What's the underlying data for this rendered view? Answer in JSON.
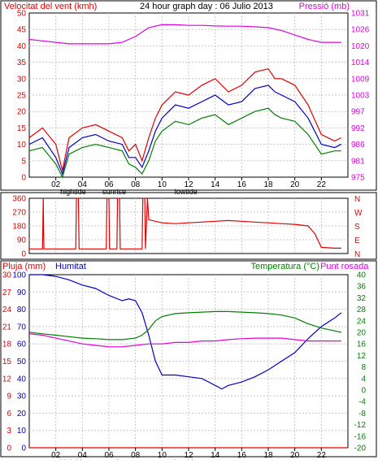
{
  "colors": {
    "background": "#ffffff",
    "frame": "#000000",
    "grid": "#c8c8c8",
    "red": "#e00000",
    "blue": "#0000c8",
    "green": "#008000",
    "magenta": "#e000e0"
  },
  "time_ticks": [
    "02",
    "04",
    "06",
    "08",
    "10",
    "12",
    "14",
    "16",
    "18",
    "20",
    "22"
  ],
  "time_events": [
    {
      "at": 3.3,
      "label": "hightide"
    },
    {
      "at": 6.4,
      "label": "sunrise"
    },
    {
      "at": 11.8,
      "label": "lowtide"
    }
  ],
  "chart_data": [
    {
      "type": "line",
      "title": "24 hour graph day : 06 Julio 2013",
      "left_axis_label": "Velocitat del vent (kmh)",
      "right_axis_label": "Pressió (mb)",
      "x_range": [
        0,
        24
      ],
      "left_ticks": [
        "0",
        "5",
        "10",
        "15",
        "20",
        "25",
        "30",
        "35",
        "40",
        "45",
        "50"
      ],
      "left_range": [
        0,
        50
      ],
      "right_ticks": [
        "975",
        "981",
        "986",
        "992",
        "997",
        "1003",
        "1009",
        "1014",
        "1020",
        "1026",
        "1031"
      ],
      "right_range": [
        975,
        1031
      ],
      "grid": true,
      "series": [
        {
          "color": "red",
          "axis": "left",
          "x": [
            0,
            1,
            2,
            2.5,
            3,
            4,
            5,
            6,
            7,
            7.5,
            8,
            8.5,
            9,
            9.5,
            10,
            11,
            12,
            13,
            14,
            15,
            16,
            17,
            18,
            18.5,
            19,
            20,
            21,
            22,
            23,
            23.5
          ],
          "y": [
            12,
            15,
            10,
            2,
            12,
            15,
            16,
            14,
            12,
            8,
            10,
            5,
            12,
            18,
            22,
            26,
            25,
            28,
            30,
            26,
            28,
            32,
            33,
            30,
            30,
            28,
            22,
            13,
            11,
            12
          ]
        },
        {
          "color": "blue",
          "axis": "left",
          "x": [
            0,
            1,
            2,
            2.5,
            3,
            4,
            5,
            6,
            7,
            7.5,
            8,
            8.5,
            9,
            9.5,
            10,
            11,
            12,
            13,
            14,
            15,
            16,
            17,
            18,
            18.5,
            19,
            20,
            21,
            22,
            23,
            23.5
          ],
          "y": [
            10,
            12,
            6,
            1,
            9,
            12,
            13,
            11,
            10,
            6,
            6,
            3,
            8,
            14,
            18,
            22,
            21,
            23,
            25,
            22,
            23,
            27,
            28,
            26,
            25,
            23,
            18,
            10,
            9,
            10
          ]
        },
        {
          "color": "green",
          "axis": "left",
          "x": [
            0,
            1,
            2,
            2.5,
            3,
            4,
            5,
            6,
            7,
            7.5,
            8,
            8.5,
            9,
            9.5,
            10,
            11,
            12,
            13,
            14,
            15,
            16,
            17,
            18,
            18.5,
            19,
            20,
            21,
            22,
            23,
            23.5
          ],
          "y": [
            8,
            9,
            4,
            0,
            7,
            9,
            10,
            9,
            8,
            4,
            3,
            1,
            5,
            11,
            14,
            17,
            16,
            18,
            19,
            16,
            18,
            20,
            21,
            19,
            18,
            17,
            13,
            7,
            8,
            8
          ]
        },
        {
          "color": "magenta",
          "axis": "right",
          "x": [
            0,
            1,
            2,
            3,
            4,
            5,
            6,
            7,
            8,
            9,
            10,
            11,
            12,
            13,
            14,
            15,
            16,
            17,
            18,
            19,
            20,
            21,
            22,
            23,
            23.5
          ],
          "y": [
            1022,
            1021.5,
            1021,
            1020.5,
            1020.5,
            1020.5,
            1020.5,
            1021,
            1023,
            1026,
            1027,
            1027,
            1026.8,
            1026.8,
            1026.6,
            1026.5,
            1026.5,
            1026.3,
            1026,
            1025,
            1023.5,
            1022,
            1021,
            1021,
            1021
          ]
        }
      ]
    },
    {
      "type": "line",
      "right_axis_letters": [
        "N",
        "W",
        "S",
        "E",
        "N"
      ],
      "x_range": [
        0,
        24
      ],
      "left_ticks": [
        "0",
        "90",
        "180",
        "270",
        "360"
      ],
      "left_range": [
        0,
        360
      ],
      "grid": true,
      "series": [
        {
          "color": "red",
          "axis": "left",
          "x": [
            0,
            1,
            1.05,
            1.1,
            2,
            3,
            3.5,
            3.55,
            3.7,
            3.75,
            5,
            5.8,
            5.85,
            6.0,
            6.05,
            6.6,
            6.65,
            6.8,
            6.85,
            8,
            8.5,
            8.55,
            8.7,
            8.75,
            8.9,
            9,
            10,
            11,
            12,
            13,
            14,
            15,
            16,
            17,
            18,
            19,
            20,
            21,
            21.5,
            22,
            23,
            23.5
          ],
          "y": [
            30,
            30,
            360,
            30,
            30,
            30,
            30,
            360,
            360,
            30,
            30,
            30,
            360,
            360,
            30,
            30,
            360,
            360,
            30,
            30,
            30,
            360,
            360,
            30,
            360,
            220,
            200,
            195,
            200,
            205,
            210,
            215,
            210,
            205,
            200,
            195,
            190,
            180,
            130,
            40,
            35,
            35
          ]
        }
      ]
    },
    {
      "type": "line",
      "left_axis_label": "Pluja (mm)",
      "second_axis_label": "Humitat",
      "right_axis_label": "Temperatura (°C)",
      "right_axis_label_2": "Punt rosada",
      "x_range": [
        0,
        24
      ],
      "left_ticks": [
        "0",
        "10",
        "20",
        "30",
        "40",
        "50",
        "60",
        "70",
        "80",
        "90",
        "100"
      ],
      "left_range": [
        0,
        100
      ],
      "rain_ticks": [
        "0",
        "3",
        "6",
        "9",
        "12",
        "15",
        "18",
        "21",
        "24",
        "27",
        "30"
      ],
      "right_ticks": [
        "-20",
        "-16",
        "-12",
        "-8",
        "-4",
        "0",
        "4",
        "8",
        "12",
        "16",
        "20",
        "24",
        "28",
        "32",
        "36",
        "40"
      ],
      "right_range": [
        -20,
        40
      ],
      "grid": true,
      "series": [
        {
          "name": "Humitat",
          "color": "blue",
          "axis": "left",
          "x": [
            0,
            1,
            2,
            3,
            4,
            5,
            6,
            7,
            7.5,
            8,
            8.5,
            9,
            9.5,
            10,
            11,
            12,
            13,
            14,
            14.5,
            15,
            16,
            17,
            18,
            19,
            20,
            21,
            22,
            23,
            23.5
          ],
          "y": [
            100,
            100,
            99,
            97,
            94,
            92,
            88,
            85,
            86,
            85,
            78,
            65,
            50,
            42,
            42,
            41,
            40,
            36,
            34,
            36,
            38,
            41,
            45,
            50,
            55,
            63,
            70,
            75,
            78
          ]
        },
        {
          "name": "Temperatura",
          "color": "green",
          "axis": "right",
          "x": [
            0,
            1,
            2,
            3,
            4,
            5,
            6,
            7,
            8,
            8.5,
            9,
            9.5,
            10,
            11,
            12,
            13,
            14,
            15,
            16,
            17,
            18,
            19,
            20,
            21,
            22,
            23,
            23.5
          ],
          "y": [
            20,
            19.5,
            19,
            18.5,
            18,
            17.8,
            17.5,
            17.5,
            18,
            19,
            21,
            24,
            25.5,
            26.5,
            26.8,
            27,
            27.2,
            27.2,
            27,
            26.8,
            26.5,
            26,
            25,
            23,
            21.5,
            20.5,
            20
          ]
        },
        {
          "name": "Punt rosada",
          "color": "magenta",
          "axis": "right",
          "x": [
            0,
            1,
            2,
            3,
            4,
            5,
            6,
            7,
            8,
            9,
            10,
            11,
            12,
            13,
            14,
            15,
            16,
            17,
            18,
            19,
            20,
            21,
            22,
            23,
            23.5
          ],
          "y": [
            19.5,
            19,
            18,
            17,
            16,
            15.5,
            15,
            15,
            15.5,
            16,
            16,
            16.5,
            16.5,
            17,
            17,
            17.5,
            17.8,
            18,
            18,
            18,
            17.5,
            17,
            17,
            17,
            17
          ]
        },
        {
          "name": "Pluja",
          "color": "red",
          "axis": "left",
          "x": [
            0,
            24
          ],
          "y": [
            0,
            0
          ]
        }
      ]
    }
  ]
}
